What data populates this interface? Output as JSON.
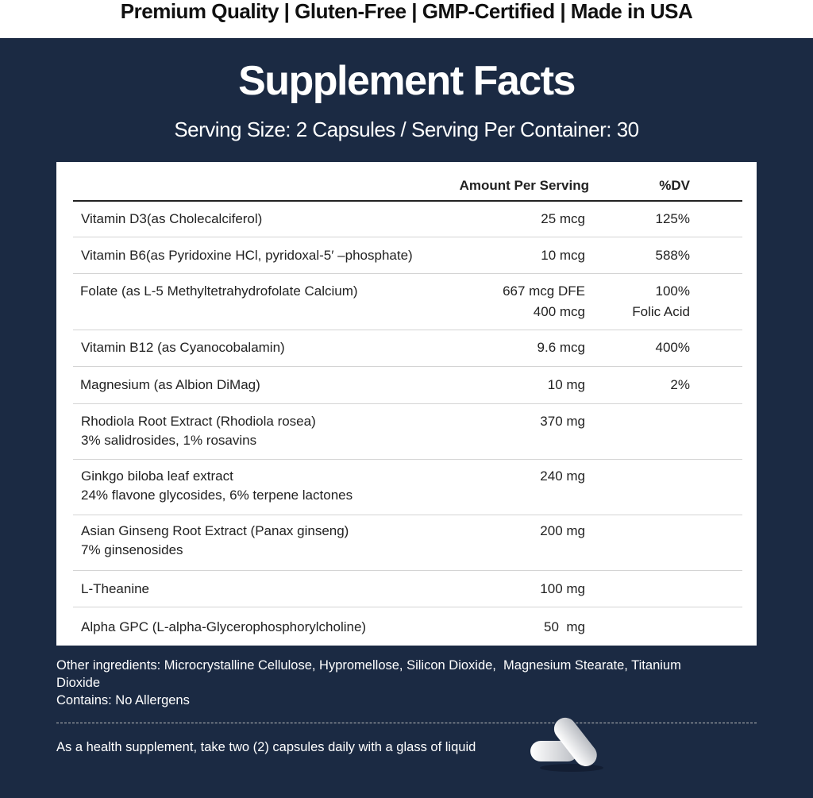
{
  "banner": "Premium Quality | Gluten-Free | GMP-Certified | Made in USA",
  "title": "Supplement Facts",
  "serving": "Serving Size: 2 Capsules / Serving Per Container: 30",
  "table": {
    "headers": {
      "amount": "Amount Per Serving",
      "dv": "%DV"
    },
    "rows": [
      {
        "name": "Vitamin D3(as Cholecalciferol)",
        "amount": "25 mcg",
        "dv": "125%"
      },
      {
        "name": "Vitamin B6(as Pyridoxine HCl, pyridoxal-5′ –phosphate)",
        "amount": "10 mcg",
        "dv": "588%"
      },
      {
        "name": "Folate (as L-5 Methyltetrahydrofolate Calcium)",
        "amount": "667 mcg DFE",
        "amount2": "400 mcg",
        "dv": "100%",
        "dv2": "Folic Acid"
      },
      {
        "name": "Vitamin B12 (as Cyanocobalamin)",
        "amount": "9.6 mcg",
        "dv": "400%"
      },
      {
        "name": "Magnesium (as Albion DiMag)",
        "amount": "10 mg",
        "dv": "2%"
      },
      {
        "name": "Rhodiola Root Extract (Rhodiola rosea)",
        "name2": "3% salidrosides, 1% rosavins",
        "amount": "370 mg"
      },
      {
        "name": "Ginkgo biloba leaf extract",
        "name2": "24% flavone glycosides, 6% terpene lactones",
        "amount": "240 mg"
      },
      {
        "name": "Asian Ginseng Root Extract (Panax ginseng)",
        "name2": "7% ginsenosides",
        "amount": "200 mg"
      },
      {
        "name": "L-Theanine",
        "amount": "100 mg"
      },
      {
        "name": "Alpha GPC (L-alpha-Glycerophosphorylcholine)",
        "amount": "50  mg"
      }
    ]
  },
  "other_ingredients": "Other ingredients: Microcrystalline Cellulose, Hypromellose, Silicon Dioxide,  Magnesium Stearate, Titanium Dioxide",
  "allergens": "Contains: No Allergens",
  "directions": "As a health supplement, take two (2) capsules daily with a glass of liquid",
  "colors": {
    "background": "#1b2a43",
    "panel": "#ffffff"
  }
}
